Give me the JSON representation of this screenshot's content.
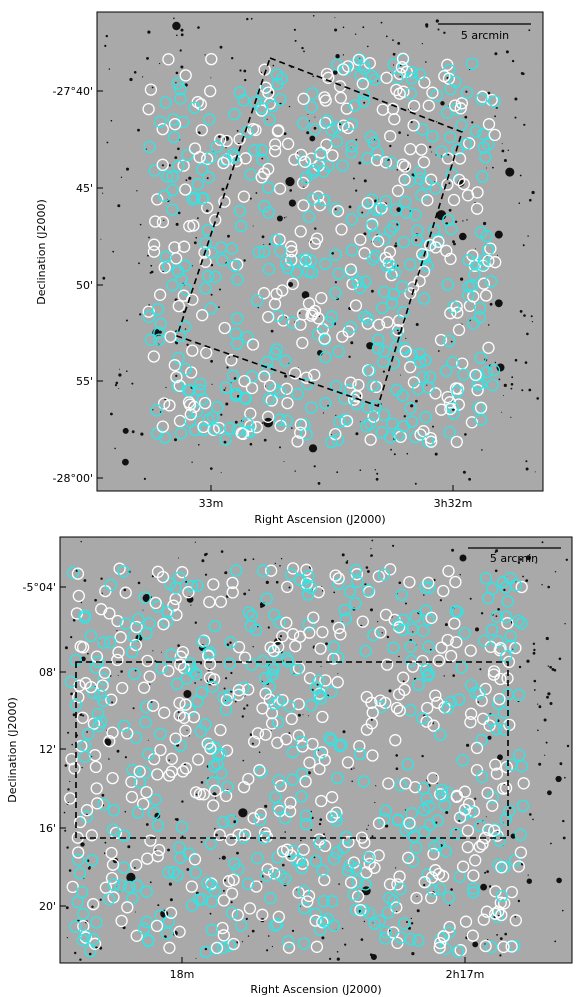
{
  "panels": [
    {
      "id": "top",
      "scalebar_label": "5 arcmin",
      "xlabel": "Right Ascension (J2000)",
      "ylabel": "Declination (J2000)",
      "xticks": [
        "33m",
        "3h32m"
      ],
      "yticks": [
        "-27°40'",
        "45'",
        "50'",
        "55'",
        "-28°00'"
      ]
    },
    {
      "id": "bottom",
      "scalebar_label": "5 arcmin",
      "xlabel": "Right Ascension (J2000)",
      "ylabel": "Declination (J2000)",
      "xticks": [
        "18m",
        "2h17m"
      ],
      "yticks": [
        "-5°04'",
        "08'",
        "12'",
        "16'",
        "20'"
      ]
    }
  ],
  "colors": {
    "background_gray": "#a9a9a9",
    "cyan_marker": "#2fe6e6",
    "white_marker": "#ffffff",
    "footprint": "#000000"
  }
}
